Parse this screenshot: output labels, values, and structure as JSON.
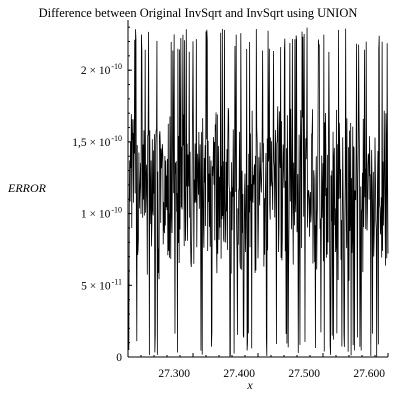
{
  "chart_data": {
    "type": "line",
    "title": "Difference between Original InvSqrt and InvSqrt using UNION",
    "xlabel": "x",
    "ylabel": "ERROR",
    "xlim": [
      27.2,
      27.6
    ],
    "ylim": [
      0,
      2.35e-10
    ],
    "x_ticks": [
      {
        "value": 27.3,
        "label": "27.300"
      },
      {
        "value": 27.4,
        "label": "27.400"
      },
      {
        "value": 27.5,
        "label": "27.500"
      },
      {
        "value": 27.6,
        "label": "27.600"
      }
    ],
    "y_ticks": [
      {
        "value": 0,
        "mantissa": "0",
        "exponent": ""
      },
      {
        "value": 5e-11,
        "mantissa": "5 × 10",
        "exponent": "-11"
      },
      {
        "value": 1e-10,
        "mantissa": "1 × 10",
        "exponent": "-10"
      },
      {
        "value": 1.5e-10,
        "mantissa": "1,5 × 10",
        "exponent": "-10"
      },
      {
        "value": 2e-10,
        "mantissa": "2 × 10",
        "exponent": "-10"
      }
    ],
    "grid": false,
    "line_color": "#000000",
    "series": [
      {
        "x": [
          27.2,
          27.6
        ],
        "y_min": 0,
        "y_max": 2.3e-10,
        "y_center": 1.15e-10
      }
    ]
  }
}
